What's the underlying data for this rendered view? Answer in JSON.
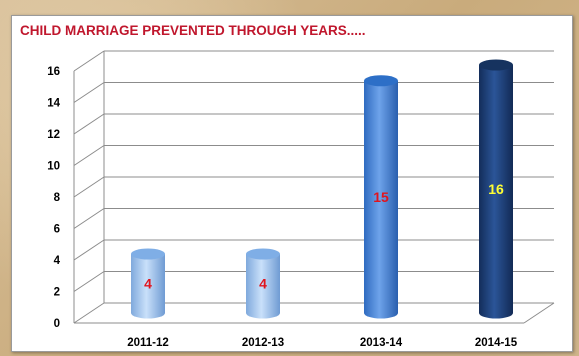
{
  "chart_data": {
    "type": "bar",
    "title": "CHILD MARRIAGE PREVENTED THROUGH YEARS.....",
    "categories": [
      "2011-12",
      "2012-13",
      "2013-14",
      "2014-15"
    ],
    "values": [
      4,
      4,
      15,
      16
    ],
    "ylim": [
      0,
      16
    ],
    "yticks": [
      "0",
      "2",
      "4",
      "6",
      "8",
      "10",
      "12",
      "14",
      "16"
    ],
    "grid": true,
    "bar_style": "3d-cylinder",
    "colors": {
      "title": "#c0172d",
      "bars": [
        "#a4c8ef",
        "#a4c8ef",
        "#4a86d8",
        "#1f3f7a"
      ],
      "bar_tops": [
        "#7faee6",
        "#7faee6",
        "#2d6fc7",
        "#16335f"
      ],
      "data_labels": [
        "#e0141e",
        "#e0141e",
        "#e0141e",
        "#ffff33"
      ]
    }
  }
}
